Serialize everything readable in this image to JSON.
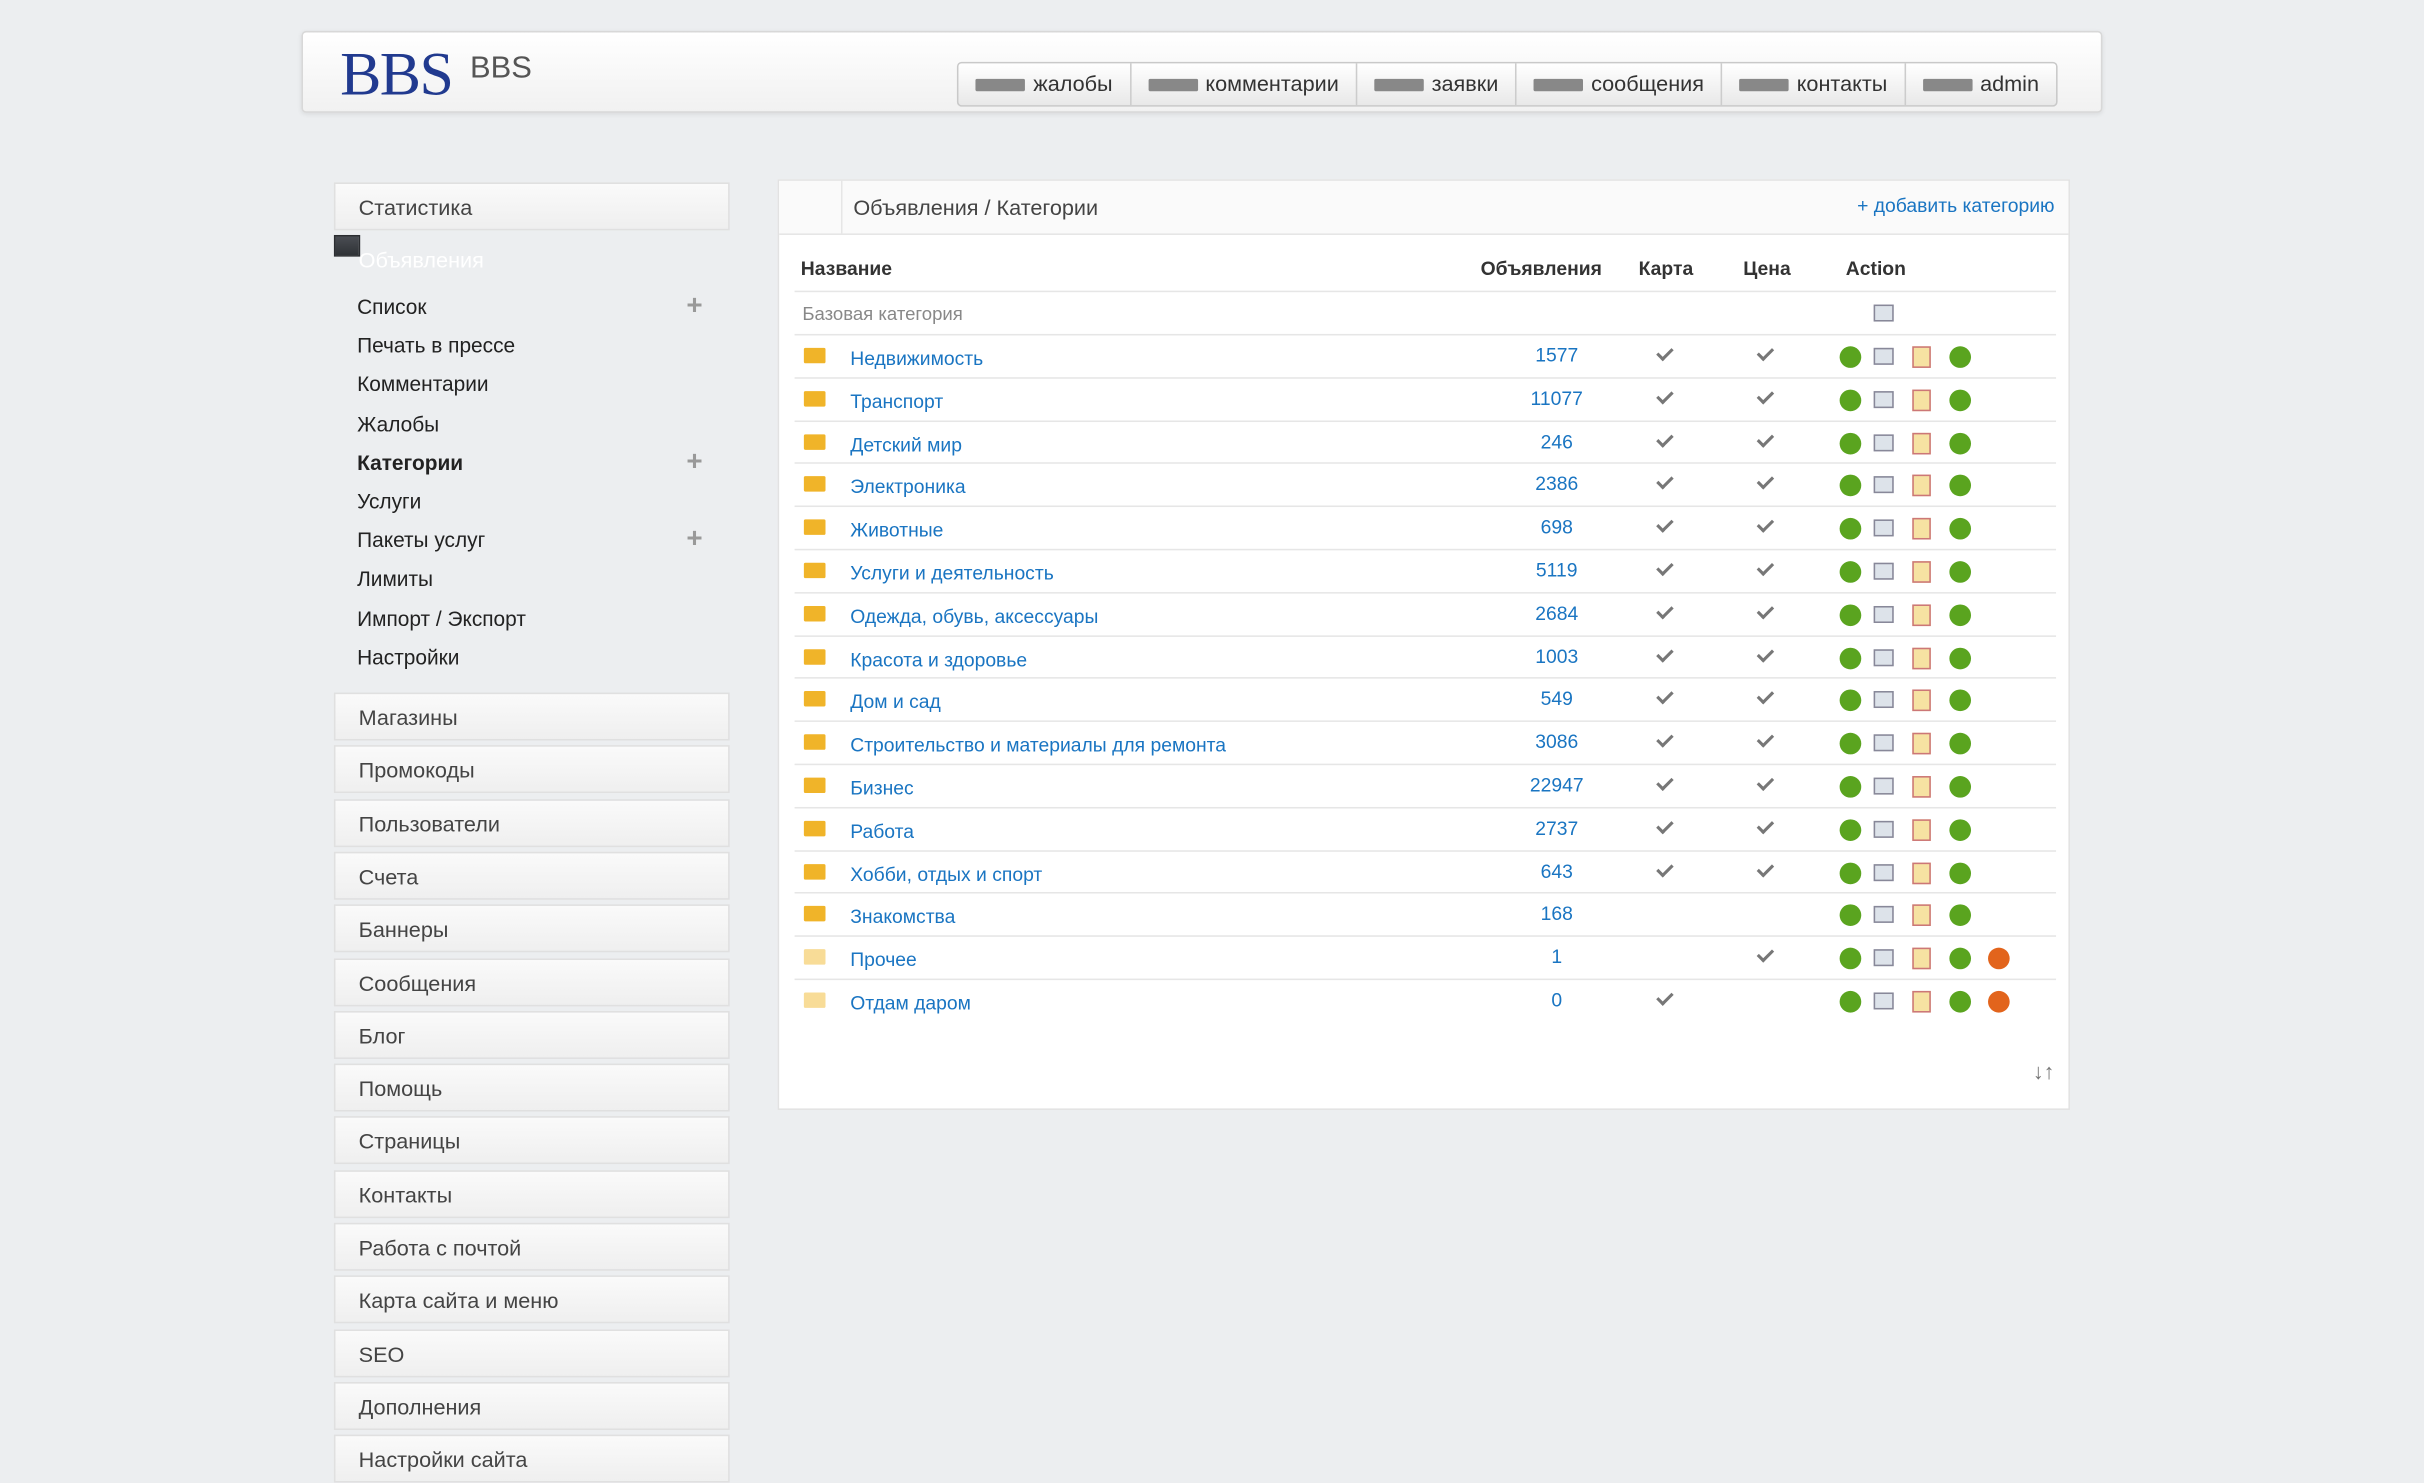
{
  "header": {
    "logo": "BBS",
    "brand": "BBS",
    "nav": [
      "жалобы",
      "комментарии",
      "заявки",
      "сообщения",
      "контакты",
      "admin"
    ]
  },
  "sidebar": {
    "top": [
      "Статистика"
    ],
    "active": "Объявления",
    "submenu": [
      {
        "label": "Список",
        "plus": true
      },
      {
        "label": "Печать в прессе",
        "plus": false
      },
      {
        "label": "Комментарии",
        "plus": false
      },
      {
        "label": "Жалобы",
        "plus": false
      },
      {
        "label": "Категории",
        "plus": true,
        "current": true
      },
      {
        "label": "Услуги",
        "plus": false
      },
      {
        "label": "Пакеты услуг",
        "plus": true
      },
      {
        "label": "Лимиты",
        "plus": false
      },
      {
        "label": "Импорт / Экспорт",
        "plus": false
      },
      {
        "label": "Настройки",
        "plus": false
      }
    ],
    "items": [
      "Магазины",
      "Промокоды",
      "Пользователи",
      "Счета",
      "Баннеры",
      "Сообщения",
      "Блог",
      "Помощь",
      "Страницы",
      "Контакты",
      "Работа с почтой",
      "Карта сайта и меню",
      "SEO",
      "Дополнения",
      "Настройки сайта"
    ]
  },
  "panel": {
    "breadcrumb": "Объявления / Категории",
    "add_link": "+ добавить категорию",
    "sort_link": "↓↑",
    "table": {
      "columns": [
        "Название",
        "Объявления",
        "Карта",
        "Цена",
        "Action"
      ],
      "base_row": "Базовая категория",
      "rows": [
        {
          "name": "Недвижимость",
          "count": 1577,
          "map": true,
          "price": true,
          "delete": false,
          "empty": false
        },
        {
          "name": "Транспорт",
          "count": 11077,
          "map": true,
          "price": true,
          "delete": false,
          "empty": false
        },
        {
          "name": "Детский мир",
          "count": 246,
          "map": true,
          "price": true,
          "delete": false,
          "empty": false
        },
        {
          "name": "Электроника",
          "count": 2386,
          "map": true,
          "price": true,
          "delete": false,
          "empty": false
        },
        {
          "name": "Животные",
          "count": 698,
          "map": true,
          "price": true,
          "delete": false,
          "empty": false
        },
        {
          "name": "Услуги и деятельность",
          "count": 5119,
          "map": true,
          "price": true,
          "delete": false,
          "empty": false
        },
        {
          "name": "Одежда, обувь, аксессуары",
          "count": 2684,
          "map": true,
          "price": true,
          "delete": false,
          "empty": false
        },
        {
          "name": "Красота и здоровье",
          "count": 1003,
          "map": true,
          "price": true,
          "delete": false,
          "empty": false
        },
        {
          "name": "Дом и сад",
          "count": 549,
          "map": true,
          "price": true,
          "delete": false,
          "empty": false
        },
        {
          "name": "Строительство и материалы для ремонта",
          "count": 3086,
          "map": true,
          "price": true,
          "delete": false,
          "empty": false
        },
        {
          "name": "Бизнес",
          "count": 22947,
          "map": true,
          "price": true,
          "delete": false,
          "empty": false
        },
        {
          "name": "Работа",
          "count": 2737,
          "map": true,
          "price": true,
          "delete": false,
          "empty": false
        },
        {
          "name": "Хобби, отдых и спорт",
          "count": 643,
          "map": true,
          "price": true,
          "delete": false,
          "empty": false
        },
        {
          "name": "Знакомства",
          "count": 168,
          "map": false,
          "price": false,
          "delete": false,
          "empty": false
        },
        {
          "name": "Прочее",
          "count": 1,
          "map": false,
          "price": true,
          "delete": true,
          "empty": true
        },
        {
          "name": "Отдам даром",
          "count": 0,
          "map": true,
          "price": false,
          "delete": true,
          "empty": true
        }
      ]
    }
  }
}
